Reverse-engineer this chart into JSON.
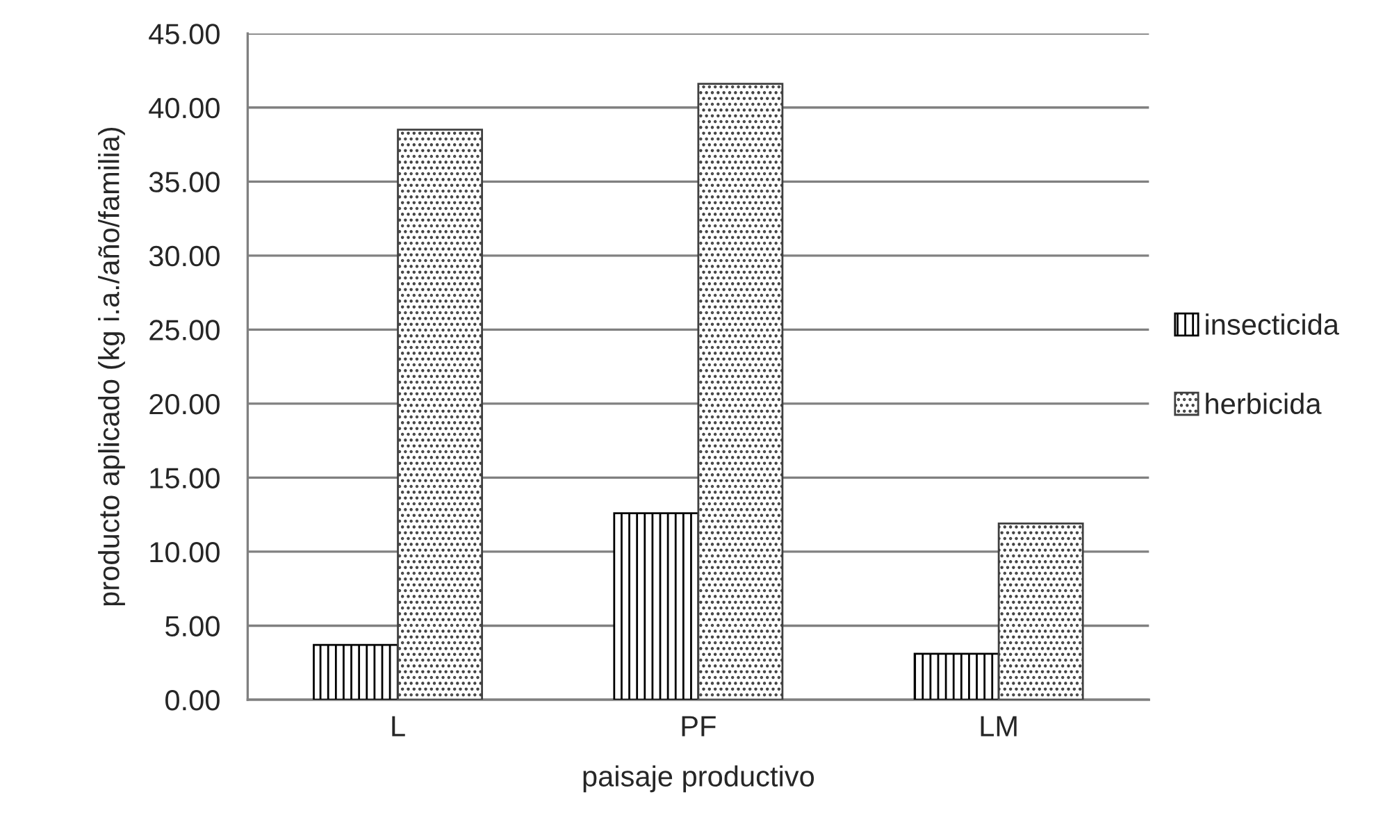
{
  "chart_data": {
    "type": "bar",
    "xlabel": "paisaje productivo",
    "ylabel": "producto aplicado (kg i.a./año/familia)",
    "categories": [
      "L",
      "PF",
      "LM"
    ],
    "series": [
      {
        "name": "insecticida",
        "color": "#000000",
        "values": [
          3.7,
          12.6,
          3.1
        ]
      },
      {
        "name": "herbicida",
        "color": "#404040",
        "values": [
          38.5,
          41.6,
          11.9
        ]
      }
    ],
    "ylim": [
      0,
      45
    ],
    "yticks": [
      {
        "value": 0,
        "label": "0.00"
      },
      {
        "value": 5,
        "label": "5.00"
      },
      {
        "value": 10,
        "label": "10.00"
      },
      {
        "value": 15,
        "label": "15.00"
      },
      {
        "value": 20,
        "label": "20.00"
      },
      {
        "value": 25,
        "label": "25.00"
      },
      {
        "value": 30,
        "label": "30.00"
      },
      {
        "value": 35,
        "label": "35.00"
      },
      {
        "value": 40,
        "label": "40.00"
      },
      {
        "value": 45,
        "label": "45.00"
      }
    ],
    "grid": "y",
    "legend": "right"
  }
}
